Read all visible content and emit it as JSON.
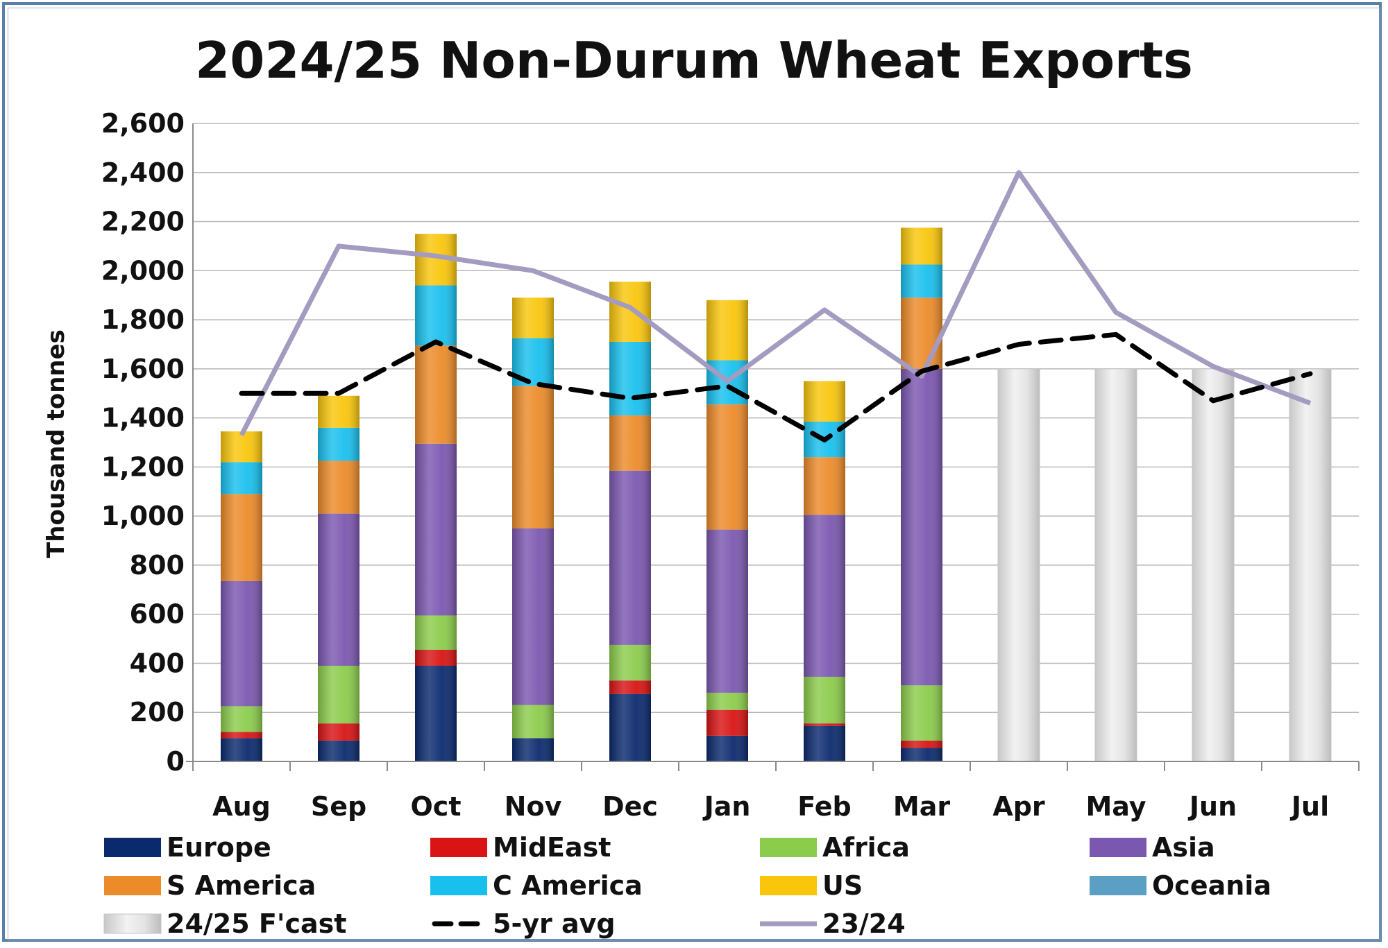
{
  "chart_data": {
    "type": "bar",
    "subtype": "stacked-bar-with-lines",
    "title": "2024/25 Non-Durum Wheat Exports",
    "xlabel": "",
    "ylabel": "Thousand tonnes",
    "ylim": [
      0,
      2600
    ],
    "yticks": [
      0,
      200,
      400,
      600,
      800,
      1000,
      1200,
      1400,
      1600,
      1800,
      2000,
      2200,
      2400,
      2600
    ],
    "ytick_labels": [
      "0",
      "200",
      "400",
      "600",
      "800",
      "1,000",
      "1,200",
      "1,400",
      "1,600",
      "1,800",
      "2,000",
      "2,200",
      "2,400",
      "2,600"
    ],
    "categories": [
      "Aug",
      "Sep",
      "Oct",
      "Nov",
      "Dec",
      "Jan",
      "Feb",
      "Mar",
      "Apr",
      "May",
      "Jun",
      "Jul"
    ],
    "grid": "horizontal",
    "legend_position": "bottom",
    "series": [
      {
        "name": "Europe",
        "kind": "bar",
        "color": "#0b2a6e",
        "values": [
          95,
          85,
          390,
          95,
          275,
          105,
          145,
          55,
          null,
          null,
          null,
          null
        ]
      },
      {
        "name": "MidEast",
        "kind": "bar",
        "color": "#d81414",
        "values": [
          25,
          70,
          65,
          0,
          55,
          105,
          10,
          30,
          null,
          null,
          null,
          null
        ]
      },
      {
        "name": "Africa",
        "kind": "bar",
        "color": "#8ccc4c",
        "values": [
          105,
          235,
          140,
          135,
          145,
          70,
          190,
          225,
          null,
          null,
          null,
          null
        ]
      },
      {
        "name": "Asia",
        "kind": "bar",
        "color": "#7b58b0",
        "values": [
          510,
          620,
          700,
          720,
          710,
          665,
          660,
          1290,
          null,
          null,
          null,
          null
        ]
      },
      {
        "name": "S America",
        "kind": "bar",
        "color": "#ec8b2a",
        "values": [
          355,
          215,
          400,
          580,
          225,
          510,
          235,
          290,
          null,
          null,
          null,
          null
        ]
      },
      {
        "name": "C America",
        "kind": "bar",
        "color": "#19c0ee",
        "values": [
          130,
          135,
          245,
          195,
          300,
          180,
          145,
          135,
          null,
          null,
          null,
          null
        ]
      },
      {
        "name": "US",
        "kind": "bar",
        "color": "#f9c60c",
        "values": [
          125,
          130,
          210,
          165,
          245,
          245,
          165,
          150,
          null,
          null,
          null,
          null
        ]
      },
      {
        "name": "Oceania",
        "kind": "bar",
        "color": "#5ba0c4",
        "values": [
          0,
          0,
          0,
          0,
          0,
          0,
          0,
          0,
          null,
          null,
          null,
          null
        ]
      },
      {
        "name": "24/25 F'cast",
        "kind": "bar",
        "color": "#e6e6e6",
        "values": [
          null,
          null,
          null,
          null,
          null,
          null,
          null,
          null,
          1600,
          1600,
          1600,
          1600
        ]
      },
      {
        "name": "5-yr avg",
        "kind": "line",
        "style": "dashed",
        "color": "#000000",
        "values": [
          1500,
          1500,
          1710,
          1540,
          1480,
          1530,
          1310,
          1590,
          1700,
          1740,
          1470,
          1580
        ]
      },
      {
        "name": "23/24",
        "kind": "line",
        "style": "solid",
        "color": "#a49bc0",
        "values": [
          1330,
          2100,
          2060,
          2000,
          1850,
          1550,
          1840,
          1570,
          2400,
          1830,
          1610,
          1460
        ]
      }
    ]
  }
}
